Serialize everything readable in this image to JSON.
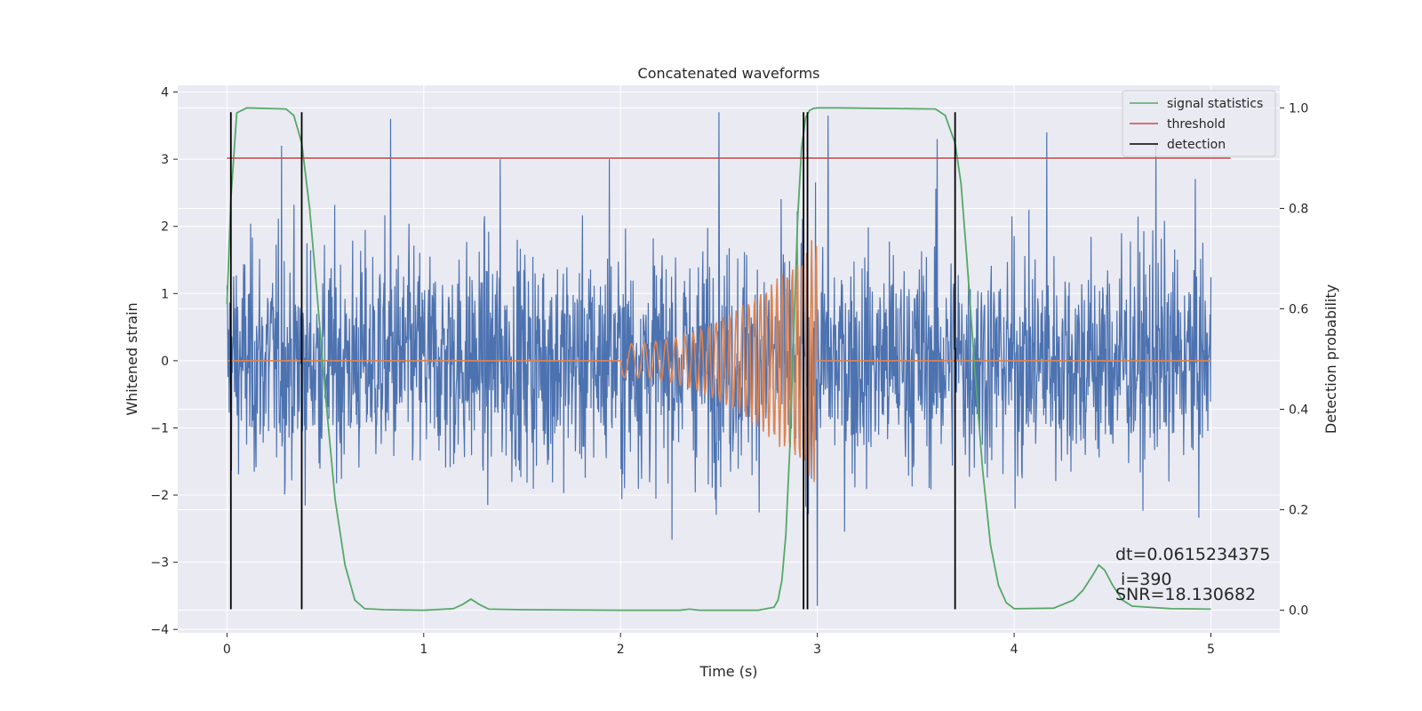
{
  "chart_data": {
    "type": "line",
    "title": "Concatenated waveforms",
    "xlabel": "Time (s)",
    "ylabel": "Whitened strain",
    "y2label": "Detection probability",
    "xlim": [
      -0.25,
      5.35
    ],
    "ylim": [
      -4.05,
      4.1
    ],
    "y2lim": [
      -0.045,
      1.045
    ],
    "x_ticks": [
      0,
      1,
      2,
      3,
      4,
      5
    ],
    "y_ticks": [
      -4,
      -3,
      -2,
      -1,
      0,
      1,
      2,
      3,
      4
    ],
    "y2_ticks": [
      0.0,
      0.2,
      0.4,
      0.6,
      0.8,
      1.0
    ],
    "y2_tick_labels": [
      "0.0",
      "0.2",
      "0.4",
      "0.6",
      "0.8",
      "1.0"
    ],
    "grid": true,
    "legend_position": "top-right",
    "colors": {
      "background": "#eaeaf2",
      "strain": "#4c72b0",
      "injection": "#dd8452",
      "signal_statistics": "#55a868",
      "threshold": "#c44e52",
      "detection": "#000000"
    },
    "series": [
      {
        "key": "strain",
        "axis": "left",
        "x_range": [
          0,
          5
        ],
        "noise_std": 0.85,
        "peaks_y": [
          3.2,
          3.6,
          3.0,
          3.0,
          3.7,
          3.65,
          3.3,
          3.4,
          3.25
        ],
        "min_y": -3.65
      },
      {
        "key": "injection",
        "axis": "left",
        "chirp_start": 2.0,
        "chirp_end": 3.0,
        "amp_start": 0.25,
        "amp_end": 1.9,
        "cycles": 28
      },
      {
        "name": "signal statistics",
        "axis": "right",
        "x": [
          0.0,
          0.02,
          0.05,
          0.1,
          0.3,
          0.34,
          0.38,
          0.42,
          0.46,
          0.5,
          0.55,
          0.6,
          0.65,
          0.7,
          0.8,
          1.0,
          1.15,
          1.2,
          1.24,
          1.28,
          1.33,
          1.5,
          2.0,
          2.3,
          2.35,
          2.4,
          2.7,
          2.78,
          2.8,
          2.82,
          2.84,
          2.86,
          2.88,
          2.9,
          2.92,
          2.94,
          2.96,
          2.98,
          3.0,
          3.1,
          3.6,
          3.65,
          3.7,
          3.73,
          3.76,
          3.8,
          3.84,
          3.88,
          3.92,
          3.96,
          4.0,
          4.2,
          4.3,
          4.35,
          4.4,
          4.43,
          4.46,
          4.5,
          4.55,
          4.6,
          4.8,
          5.0
        ],
        "y": [
          0.61,
          0.82,
          0.99,
          1.0,
          0.998,
          0.985,
          0.93,
          0.8,
          0.62,
          0.43,
          0.22,
          0.09,
          0.02,
          0.003,
          0.001,
          0.0,
          0.003,
          0.012,
          0.022,
          0.012,
          0.002,
          0.001,
          0.0,
          0.0,
          0.002,
          0.0,
          0.0,
          0.006,
          0.02,
          0.06,
          0.15,
          0.32,
          0.55,
          0.78,
          0.92,
          0.98,
          0.995,
          0.999,
          1.0,
          1.0,
          0.998,
          0.985,
          0.93,
          0.85,
          0.7,
          0.48,
          0.28,
          0.13,
          0.05,
          0.015,
          0.003,
          0.004,
          0.02,
          0.04,
          0.07,
          0.09,
          0.08,
          0.05,
          0.02,
          0.008,
          0.003,
          0.002
        ]
      },
      {
        "name": "threshold",
        "axis": "right",
        "x": [
          0,
          5.1
        ],
        "y": [
          0.9,
          0.9
        ]
      },
      {
        "name": "detection",
        "axis": "left",
        "x": [
          0.02,
          0.38,
          2.93,
          2.95,
          3.7
        ],
        "y_range": [
          -3.7,
          3.7
        ]
      }
    ],
    "annotation": {
      "dt": "dt=0.0615234375",
      "i": " i=390",
      "snr": "SNR=18.130682"
    }
  }
}
